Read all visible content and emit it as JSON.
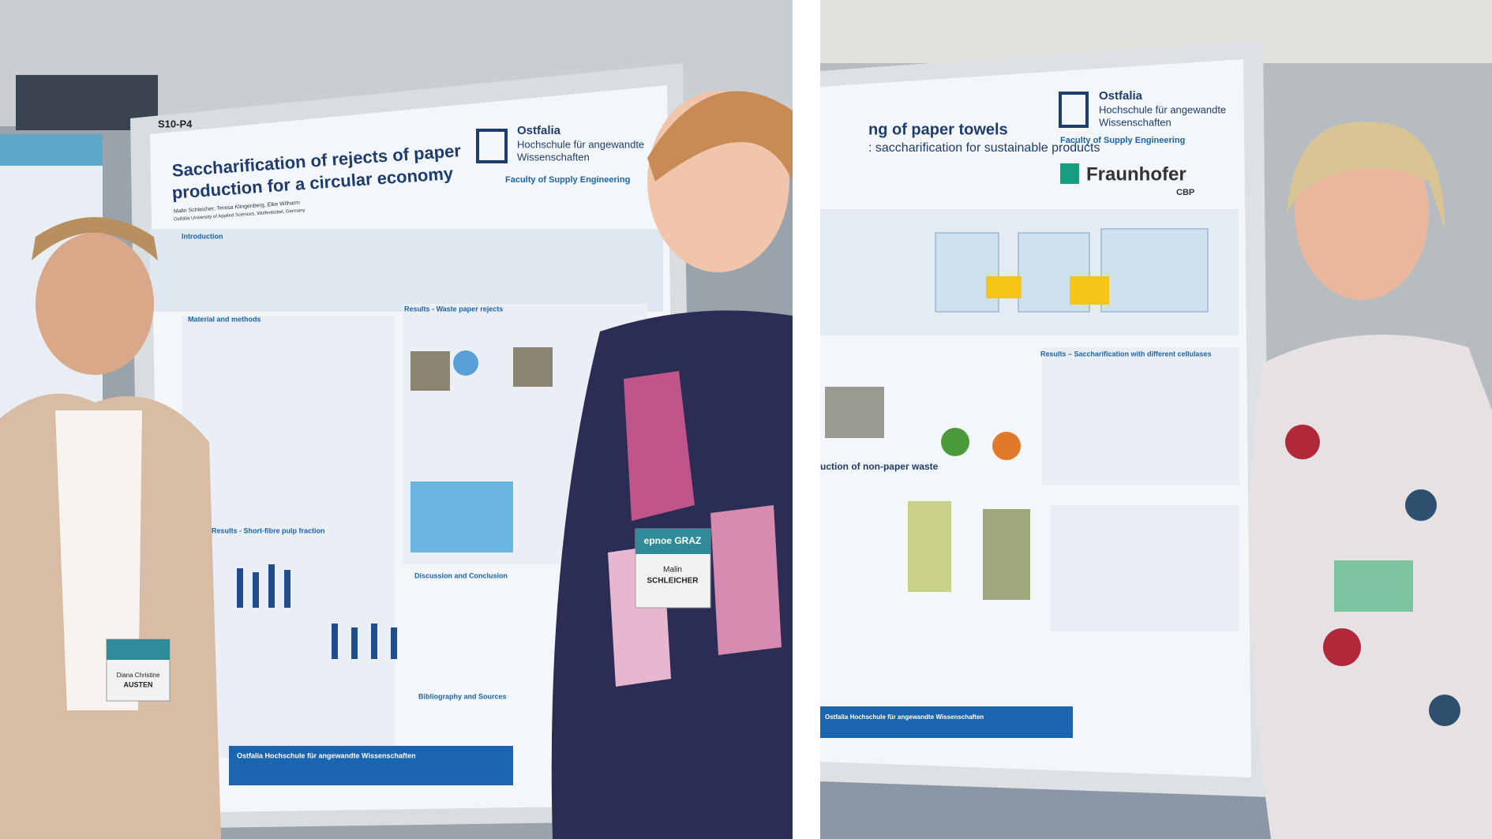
{
  "left_photo": {
    "poster": {
      "board_code": "S10-P4",
      "title_lines": [
        "Saccharification of rejects of paper",
        "production for a circular economy"
      ],
      "authors": "Malin Schleicher, Teresa Klingenberg, Elke Wilharm",
      "affiliation": "Ostfalia University of Applied Sciences, Wolfenbüttel, Germany",
      "logo": {
        "name": "Ostfalia",
        "line1": "Hochschule für angewandte",
        "line2": "Wissenschaften",
        "faculty": "Faculty of Supply Engineering"
      },
      "sections": [
        "Introduction",
        "Material and methods",
        "Results - Waste paper rejects",
        "Results - Short-fibre pulp fraction",
        "Discussion and Conclusion",
        "Bibliography and Sources"
      ],
      "footer": "Ostfalia Hochschule für angewandte Wissenschaften"
    },
    "badges": [
      {
        "line1": "Malin",
        "line2": "SCHLEICHER"
      },
      {
        "line1": "Diana Christine",
        "line2": "AUSTEN"
      }
    ],
    "event": "epnoe GRAZ"
  },
  "right_photo": {
    "poster": {
      "title_lines": [
        "ng of paper towels",
        ": saccharification for sustainable products"
      ],
      "logo": {
        "name": "Ostfalia",
        "line1": "Hochschule für angewandte",
        "line2": "Wissenschaften",
        "faculty": "Faculty of Supply Engineering"
      },
      "partner": {
        "name": "Fraunhofer",
        "unit": "CBP"
      },
      "sections": [
        "Results – Saccharification with different cellulases",
        "uction of non-paper waste"
      ],
      "footer": "Ostfalia Hochschule für angewandte Wissenschaften"
    }
  }
}
